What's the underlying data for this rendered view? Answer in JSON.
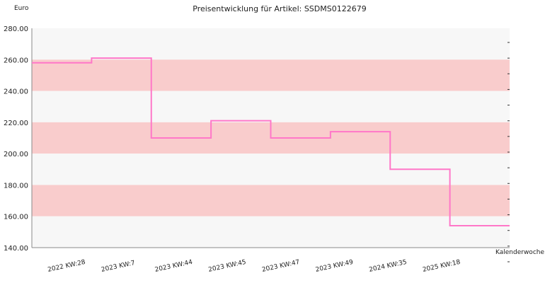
{
  "chart_data": {
    "type": "line",
    "step": true,
    "title": "Preisentwicklung für Artikel: SSDMS0122679",
    "ylabel": "Euro",
    "xlabel": "Kalenderwoche",
    "ylim": [
      140,
      280
    ],
    "y_ticks": [
      "280.00",
      "260.00",
      "240.00",
      "220.00",
      "200.00",
      "180.00",
      "160.00",
      "140.00"
    ],
    "categories": [
      "2022 KW:28",
      "2023 KW:7",
      "2023 KW:44",
      "2023 KW:45",
      "2023 KW:47",
      "2023 KW:49",
      "2024 KW:35",
      "2025 KW:18"
    ],
    "series": [
      {
        "values": [
          258,
          261,
          210,
          221,
          210,
          214,
          190,
          154
        ],
        "color": "#ff77c8"
      }
    ],
    "band_colors": [
      "#f7f7f7",
      "#f9cccc"
    ],
    "grid": true,
    "legend": "none"
  }
}
